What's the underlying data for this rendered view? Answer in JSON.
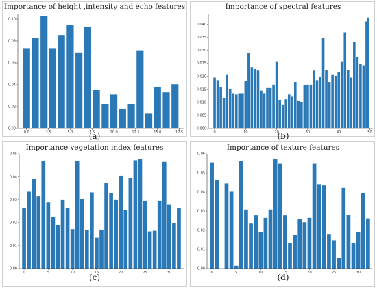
{
  "colors": {
    "bar": "#2a78b5",
    "axis": "#333333"
  },
  "chart_data": [
    {
      "type": "bar",
      "title": "Importance of height ,intensity and echo features",
      "panel_label": "(a)",
      "x": [
        0,
        1,
        2,
        3,
        4,
        5,
        6,
        7,
        8,
        9,
        10,
        11,
        12,
        13,
        14,
        15,
        16,
        17
      ],
      "values": [
        0.0735,
        0.083,
        0.1025,
        0.0735,
        0.0855,
        0.095,
        0.0695,
        0.0925,
        0.0355,
        0.0225,
        0.031,
        0.0175,
        0.0225,
        0.0715,
        0.0135,
        0.0375,
        0.033,
        0.0405
      ],
      "xlim": [
        -1,
        18
      ],
      "ylim": [
        0,
        0.105
      ],
      "xticks": [
        0.0,
        2.5,
        5.0,
        7.5,
        10.0,
        12.5,
        15.0,
        17.5
      ],
      "xtick_labels": [
        "0.0",
        "2.5",
        "5.0",
        "7.5",
        "10.0",
        "12.5",
        "15.0",
        "17.5"
      ],
      "yticks": [
        0,
        0.02,
        0.04,
        0.06,
        0.08,
        0.1
      ],
      "ytick_labels": [
        "0.00",
        "0.02",
        "0.04",
        "0.06",
        "0.08",
        "0.10"
      ]
    },
    {
      "type": "bar",
      "title": "Importance of spectral features",
      "panel_label": "(b)",
      "x": [
        0,
        1,
        2,
        3,
        4,
        5,
        6,
        7,
        8,
        9,
        10,
        11,
        12,
        13,
        14,
        15,
        16,
        17,
        18,
        19,
        20,
        21,
        22,
        23,
        24,
        25,
        26,
        27,
        28,
        29,
        30,
        31,
        32,
        33,
        34,
        35,
        36,
        37,
        38,
        39,
        40,
        41,
        42,
        43,
        44,
        45,
        46,
        47,
        48,
        49
      ],
      "values": [
        0.0195,
        0.0185,
        0.0158,
        0.0118,
        0.0205,
        0.0152,
        0.0135,
        0.013,
        0.0135,
        0.0135,
        0.0182,
        0.0288,
        0.0235,
        0.0228,
        0.0222,
        0.0145,
        0.0135,
        0.0155,
        0.0155,
        0.0168,
        0.0255,
        0.0108,
        0.0092,
        0.0112,
        0.013,
        0.0122,
        0.0178,
        0.0105,
        0.0102,
        0.0165,
        0.0168,
        0.0168,
        0.0222,
        0.0185,
        0.0198,
        0.0348,
        0.0225,
        0.0178,
        0.0205,
        0.0202,
        0.0215,
        0.0255,
        0.0368,
        0.0225,
        0.0195,
        0.0332,
        0.0275,
        0.0248,
        0.0242,
        0.041
      ],
      "extra_bar": {
        "x": 49.5,
        "value": 0.0425
      },
      "xlim": [
        -2,
        51
      ],
      "ylim": [
        0,
        0.044
      ],
      "xticks": [
        0,
        10,
        20,
        30,
        40,
        50
      ],
      "xtick_labels": [
        "0",
        "10",
        "20",
        "30",
        "40",
        "50"
      ],
      "yticks": [
        0,
        0.005,
        0.01,
        0.015,
        0.02,
        0.025,
        0.03,
        0.035,
        0.04
      ],
      "ytick_labels": [
        "0.000",
        "0.005",
        "0.010",
        "0.015",
        "0.020",
        "0.025",
        "0.030",
        "0.035",
        "0.040"
      ]
    },
    {
      "type": "bar",
      "title": "Importance vegetation index features",
      "panel_label": "(c)",
      "x": [
        0,
        1,
        2,
        3,
        4,
        5,
        6,
        7,
        8,
        9,
        10,
        11,
        12,
        13,
        14,
        15,
        16,
        17,
        18,
        19,
        20,
        21,
        22,
        23,
        24,
        25,
        26,
        27,
        28,
        29,
        30,
        31,
        32
      ],
      "values": [
        0.0265,
        0.0335,
        0.039,
        0.0315,
        0.0468,
        0.0288,
        0.0225,
        0.0188,
        0.0298,
        0.0262,
        0.0172,
        0.0468,
        0.0302,
        0.0168,
        0.0332,
        0.0135,
        0.0168,
        0.0372,
        0.0328,
        0.0298,
        0.0405,
        0.0255,
        0.0395,
        0.0472,
        0.0478,
        0.0295,
        0.0162,
        0.0165,
        0.0295,
        0.0465,
        0.0278,
        0.0198,
        0.0265
      ],
      "xlim": [
        -1,
        33
      ],
      "ylim": [
        0,
        0.05
      ],
      "xticks": [
        0,
        5,
        10,
        15,
        20,
        25,
        30
      ],
      "xtick_labels": [
        "0",
        "5",
        "10",
        "15",
        "20",
        "25",
        "30"
      ],
      "yticks": [
        0,
        0.01,
        0.02,
        0.03,
        0.04,
        0.05
      ],
      "ytick_labels": [
        "0.00",
        "0.01",
        "0.02",
        "0.03",
        "0.04",
        "0.05"
      ]
    },
    {
      "type": "bar",
      "title": "Importance of texture features",
      "panel_label": "(d)",
      "x": [
        0,
        1,
        2,
        3,
        4,
        5,
        6,
        7,
        8,
        9,
        10,
        11,
        12,
        13,
        14,
        15,
        16,
        17,
        18,
        19,
        20,
        21,
        22,
        23,
        24,
        25,
        26,
        27,
        28,
        29,
        30,
        31,
        32
      ],
      "values": [
        0.0555,
        0.0462,
        0.0,
        0.0445,
        0.0402,
        0.0015,
        0.0562,
        0.0308,
        0.0235,
        0.0278,
        0.0192,
        0.0265,
        0.0308,
        0.0572,
        0.0548,
        0.0278,
        0.0135,
        0.0175,
        0.0258,
        0.0242,
        0.0265,
        0.0548,
        0.0438,
        0.0435,
        0.0178,
        0.0145,
        0.0055,
        0.0422,
        0.0282,
        0.0132,
        0.0192,
        0.0395,
        0.0262
      ],
      "xlim": [
        -1,
        33
      ],
      "ylim": [
        0,
        0.06
      ],
      "xticks": [
        0,
        5,
        10,
        15,
        20,
        25,
        30
      ],
      "xtick_labels": [
        "0",
        "5",
        "10",
        "15",
        "20",
        "25",
        "30"
      ],
      "yticks": [
        0,
        0.01,
        0.02,
        0.03,
        0.04,
        0.05,
        0.06
      ],
      "ytick_labels": [
        "0.00",
        "0.01",
        "0.02",
        "0.03",
        "0.04",
        "0.05",
        "0.06"
      ]
    }
  ]
}
